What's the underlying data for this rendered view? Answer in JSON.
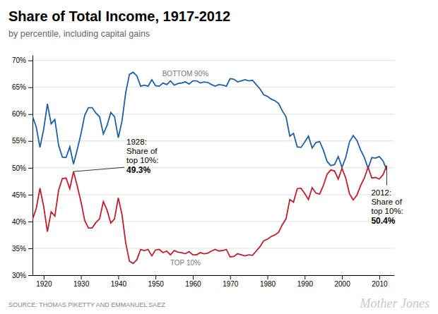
{
  "chart_data": {
    "type": "line",
    "title": "Share of Total Income, 1917-2012",
    "subtitle": "by percentile, including capital gains",
    "source": "SOURCE: THOMAS PIKETTY AND EMMANUEL SAEZ",
    "watermark": "Mother Jones",
    "xlim": [
      1917,
      2014
    ],
    "ylim": [
      0.3,
      0.71
    ],
    "xticks": [
      1920,
      1930,
      1940,
      1950,
      1960,
      1970,
      1980,
      1990,
      2000,
      2010
    ],
    "yticks": [
      {
        "value": 0.3,
        "label": "30%"
      },
      {
        "value": 0.35,
        "label": "35%"
      },
      {
        "value": 0.4,
        "label": "40%"
      },
      {
        "value": 0.45,
        "label": "45%"
      },
      {
        "value": 0.5,
        "label": "50%"
      },
      {
        "value": 0.55,
        "label": "55%"
      },
      {
        "value": 0.6,
        "label": "60%"
      },
      {
        "value": 0.65,
        "label": "65%"
      },
      {
        "value": 0.7,
        "label": "70%"
      }
    ],
    "grid": true,
    "x": [
      1917,
      1918,
      1919,
      1920,
      1921,
      1922,
      1923,
      1924,
      1925,
      1926,
      1927,
      1928,
      1929,
      1930,
      1931,
      1932,
      1933,
      1934,
      1935,
      1936,
      1937,
      1938,
      1939,
      1940,
      1941,
      1942,
      1943,
      1944,
      1945,
      1946,
      1947,
      1948,
      1949,
      1950,
      1951,
      1952,
      1953,
      1954,
      1955,
      1956,
      1957,
      1958,
      1959,
      1960,
      1961,
      1962,
      1963,
      1964,
      1965,
      1966,
      1967,
      1968,
      1969,
      1970,
      1971,
      1972,
      1973,
      1974,
      1975,
      1976,
      1977,
      1978,
      1979,
      1980,
      1981,
      1982,
      1983,
      1984,
      1985,
      1986,
      1987,
      1988,
      1989,
      1990,
      1991,
      1992,
      1993,
      1994,
      1995,
      1996,
      1997,
      1998,
      1999,
      2000,
      2001,
      2002,
      2003,
      2004,
      2005,
      2006,
      2007,
      2008,
      2009,
      2010,
      2011,
      2012
    ],
    "series": [
      {
        "name": "BOTTOM 90%",
        "color": "#1f5fa6",
        "values": [
          0.596,
          0.576,
          0.538,
          0.572,
          0.619,
          0.582,
          0.59,
          0.542,
          0.52,
          0.519,
          0.539,
          0.507,
          0.534,
          0.563,
          0.598,
          0.612,
          0.612,
          0.602,
          0.595,
          0.563,
          0.579,
          0.603,
          0.595,
          0.556,
          0.587,
          0.64,
          0.674,
          0.678,
          0.671,
          0.652,
          0.654,
          0.652,
          0.664,
          0.653,
          0.652,
          0.658,
          0.655,
          0.662,
          0.654,
          0.657,
          0.658,
          0.66,
          0.656,
          0.662,
          0.662,
          0.658,
          0.66,
          0.659,
          0.655,
          0.652,
          0.655,
          0.654,
          0.652,
          0.666,
          0.665,
          0.66,
          0.662,
          0.664,
          0.662,
          0.663,
          0.655,
          0.647,
          0.636,
          0.633,
          0.628,
          0.625,
          0.62,
          0.606,
          0.595,
          0.559,
          0.564,
          0.539,
          0.538,
          0.548,
          0.559,
          0.537,
          0.547,
          0.549,
          0.533,
          0.512,
          0.504,
          0.506,
          0.521,
          0.501,
          0.519,
          0.548,
          0.56,
          0.551,
          0.533,
          0.519,
          0.499,
          0.519,
          0.518,
          0.521,
          0.513,
          0.496
        ]
      },
      {
        "name": "TOP 10%",
        "color": "#bf1e2e",
        "values": [
          0.404,
          0.424,
          0.462,
          0.428,
          0.381,
          0.418,
          0.41,
          0.458,
          0.48,
          0.481,
          0.461,
          0.493,
          0.466,
          0.437,
          0.402,
          0.388,
          0.388,
          0.398,
          0.405,
          0.437,
          0.421,
          0.397,
          0.405,
          0.444,
          0.413,
          0.36,
          0.326,
          0.322,
          0.329,
          0.348,
          0.346,
          0.348,
          0.336,
          0.347,
          0.348,
          0.342,
          0.345,
          0.338,
          0.346,
          0.343,
          0.342,
          0.34,
          0.344,
          0.338,
          0.338,
          0.342,
          0.34,
          0.341,
          0.345,
          0.348,
          0.345,
          0.346,
          0.348,
          0.334,
          0.335,
          0.34,
          0.338,
          0.336,
          0.338,
          0.337,
          0.345,
          0.353,
          0.364,
          0.367,
          0.372,
          0.375,
          0.38,
          0.394,
          0.405,
          0.441,
          0.436,
          0.461,
          0.462,
          0.452,
          0.441,
          0.463,
          0.453,
          0.451,
          0.467,
          0.488,
          0.496,
          0.494,
          0.479,
          0.499,
          0.481,
          0.452,
          0.44,
          0.449,
          0.467,
          0.481,
          0.501,
          0.481,
          0.482,
          0.479,
          0.487,
          0.504
        ]
      }
    ],
    "annotations": [
      {
        "text": [
          "1928:",
          "Share of",
          "top 10%:"
        ],
        "x": 1928,
        "value": 0.493,
        "label": "49.3%"
      },
      {
        "text": [
          "2012:",
          "Share of",
          "top 10%:"
        ],
        "x": 2012,
        "value": 0.504,
        "label": "50.4%"
      }
    ]
  }
}
